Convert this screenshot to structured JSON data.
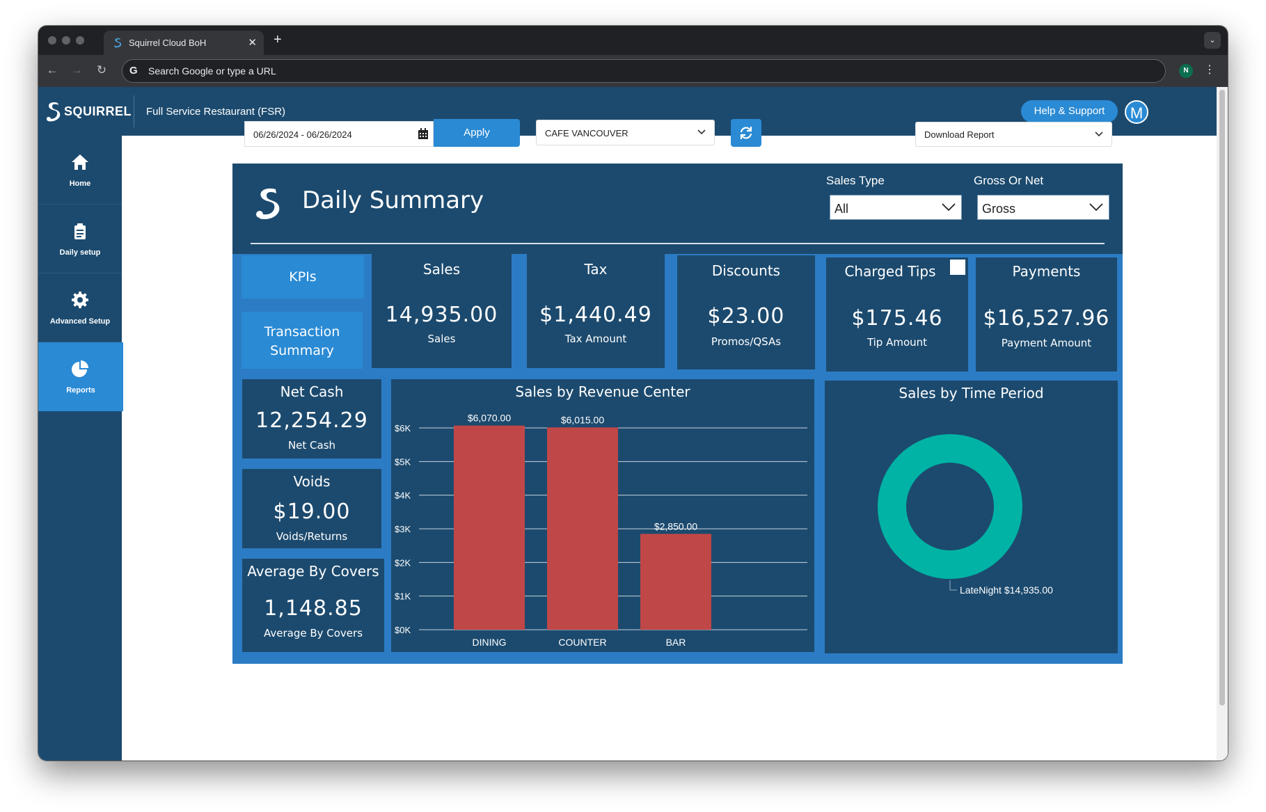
{
  "browser": {
    "tab_title": "Squirrel Cloud BoH",
    "omnibox_placeholder": "Search Google or type a URL",
    "profile_initial": "N"
  },
  "header": {
    "brand": "SQUIRREL",
    "title": "Full Service Restaurant (FSR)",
    "help_label": "Help & Support",
    "avatar_initial": "M"
  },
  "sidebar": {
    "items": [
      {
        "label": "Home",
        "icon": "home-icon"
      },
      {
        "label": "Daily setup",
        "icon": "clipboard-icon"
      },
      {
        "label": "Advanced Setup",
        "icon": "gear-icon"
      },
      {
        "label": "Reports",
        "icon": "pie-chart-icon",
        "active": true
      }
    ]
  },
  "filters": {
    "date_range": "06/26/2024 - 06/26/2024",
    "apply_label": "Apply",
    "location": "CAFE VANCOUVER",
    "download_label": "Download Report"
  },
  "report": {
    "title": "Daily Summary",
    "sales_type_label": "Sales Type",
    "sales_type_value": "All",
    "gross_net_label": "Gross Or Net",
    "gross_net_value": "Gross",
    "buttons": {
      "kpis": "KPIs",
      "transaction_summary": "Transaction Summary"
    },
    "cards": {
      "sales": {
        "title": "Sales",
        "value": "14,935.00",
        "sub": "Sales"
      },
      "tax": {
        "title": "Tax",
        "value": "$1,440.49",
        "sub": "Tax Amount"
      },
      "discounts": {
        "title": "Discounts",
        "value": "$23.00",
        "sub": "Promos/QSAs"
      },
      "tips": {
        "title": "Charged Tips",
        "value": "$175.46",
        "sub": "Tip Amount"
      },
      "payments": {
        "title": "Payments",
        "value": "$16,527.96",
        "sub": "Payment Amount"
      },
      "net_cash": {
        "title": "Net Cash",
        "value": "12,254.29",
        "sub": "Net Cash"
      },
      "voids": {
        "title": "Voids",
        "value": "$19.00",
        "sub": "Voids/Returns"
      },
      "avg_covers": {
        "title": "Average By Covers",
        "value": "1,148.85",
        "sub": "Average By Covers"
      }
    }
  },
  "colors": {
    "navy": "#1c4a6e",
    "accent": "#2a8ad4",
    "bar": "#c04747",
    "donut": "#00b3a4"
  },
  "chart_data": [
    {
      "type": "bar",
      "title": "Sales by Revenue Center",
      "categories": [
        "DINING",
        "COUNTER",
        "BAR"
      ],
      "values": [
        6070,
        6015,
        2850
      ],
      "data_labels": [
        "$6,070.00",
        "$6,015.00",
        "$2,850.00"
      ],
      "ylim": [
        0,
        6000
      ],
      "yticks": [
        0,
        1000,
        2000,
        3000,
        4000,
        5000,
        6000
      ],
      "ytick_labels": [
        "$0K",
        "$1K",
        "$2K",
        "$3K",
        "$4K",
        "$5K",
        "$6K"
      ],
      "grid": true
    },
    {
      "type": "pie",
      "title": "Sales by Time Period",
      "donut": true,
      "categories": [
        "LateNight"
      ],
      "values": [
        14935
      ],
      "data_labels": [
        "LateNight $14,935.00"
      ]
    }
  ]
}
